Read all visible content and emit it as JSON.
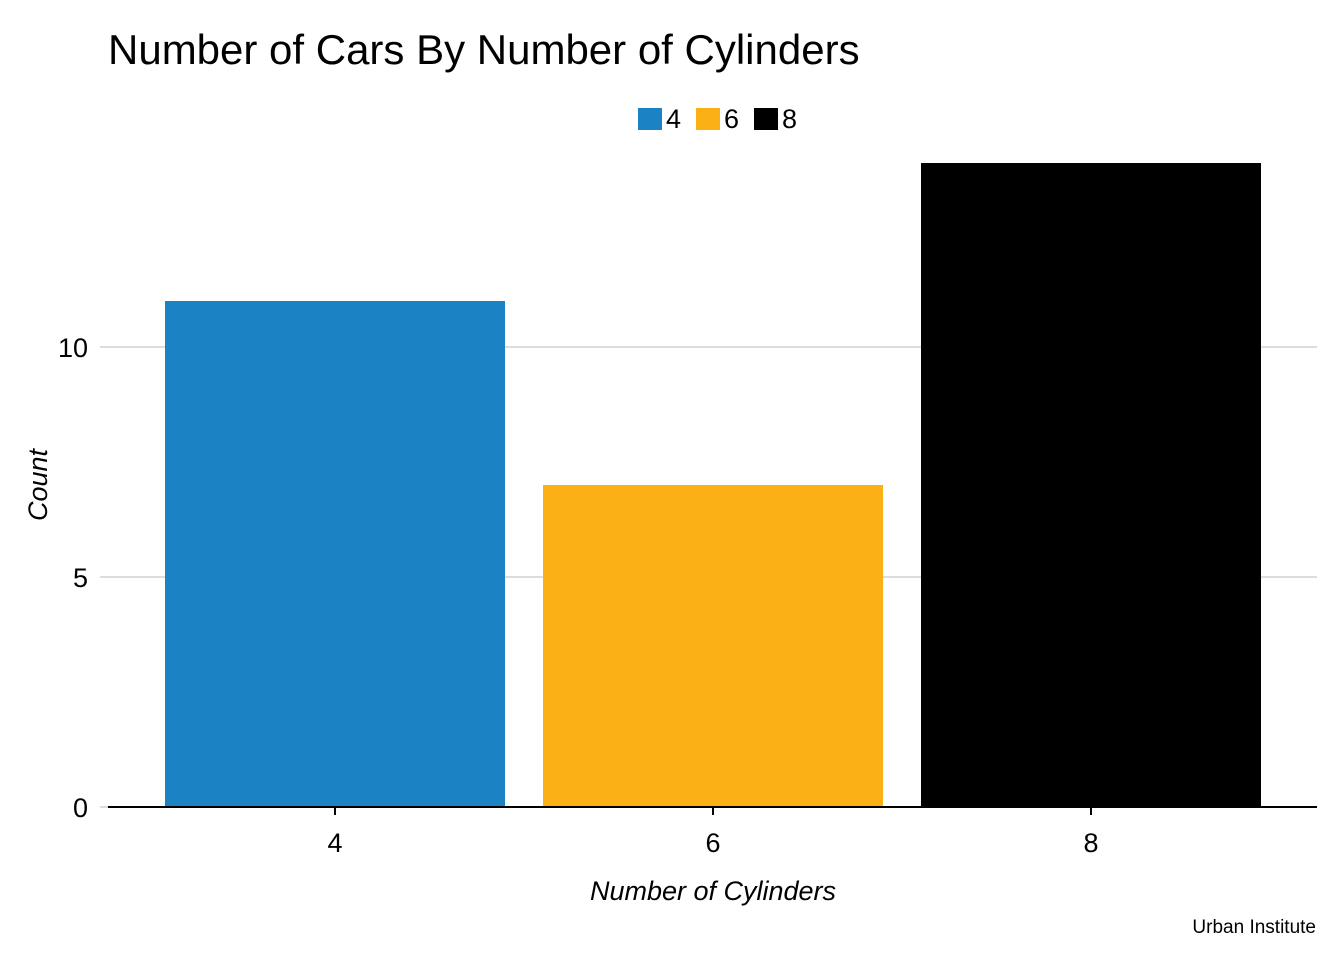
{
  "chart_data": {
    "type": "bar",
    "title": "Number of Cars By Number of Cylinders",
    "xlabel": "Number of Cylinders",
    "ylabel": "Count",
    "categories": [
      "4",
      "6",
      "8"
    ],
    "values": [
      11,
      7,
      14
    ],
    "colors": [
      "#1b82c4",
      "#fbb116",
      "#000000"
    ],
    "y_ticks": [
      0,
      5,
      10
    ],
    "ylim": [
      0,
      14
    ],
    "grid": "horizontal",
    "gridline_color": "#dedddd",
    "legend": {
      "placement": "top-center",
      "entries": [
        "4",
        "6",
        "8"
      ]
    },
    "caption": "Urban Institute"
  }
}
